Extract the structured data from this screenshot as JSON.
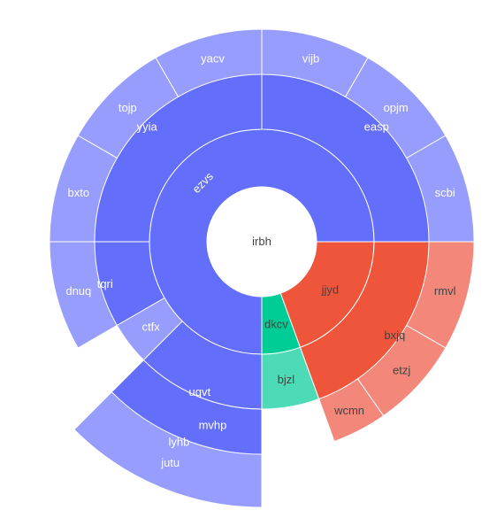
{
  "chart_data": {
    "type": "sunburst",
    "title": "",
    "center_label": "irbh",
    "rings": [
      {
        "level": 1,
        "segments": [
          {
            "label": "ezvs",
            "start_deg": 90,
            "end_deg": 360,
            "color": "#636efa",
            "text_color": "#ffffff",
            "rotated": true,
            "depth": 1
          },
          {
            "label": "jjyd",
            "start_deg": 0,
            "end_deg": 70,
            "color": "#ef553b",
            "text_color": "#444444",
            "depth": 1
          },
          {
            "label": "dkcv",
            "start_deg": 70,
            "end_deg": 90,
            "color": "#00cc96",
            "text_color": "#444444",
            "depth": 1
          }
        ]
      },
      {
        "level": 2,
        "segments": [
          {
            "label": "easp",
            "start_deg": 270,
            "end_deg": 360,
            "color": "#636efa",
            "text_color": "#ffffff",
            "depth": 2
          },
          {
            "label": "yyia",
            "start_deg": 180,
            "end_deg": 270,
            "color": "#636efa",
            "text_color": "#ffffff",
            "depth": 2
          },
          {
            "label": "tqri",
            "start_deg": 150,
            "end_deg": 180,
            "color": "#636efa",
            "text_color": "#ffffff",
            "depth": 2
          },
          {
            "label": "ctfx",
            "start_deg": 135,
            "end_deg": 150,
            "color": "#979dfc",
            "text_color": "#ffffff",
            "depth": 1
          },
          {
            "label": "uqvt",
            "start_deg": 90,
            "end_deg": 135,
            "color": "#636efa",
            "text_color": "#ffffff",
            "depth": 2
          },
          {
            "label": "bxjq",
            "start_deg": 0,
            "end_deg": 70,
            "color": "#ef553b",
            "text_color": "#444444",
            "depth": 2
          },
          {
            "label": "bjzl",
            "start_deg": 70,
            "end_deg": 90,
            "color": "#4cdbb6",
            "text_color": "#444444",
            "depth": 1
          }
        ]
      },
      {
        "level": 3,
        "segments": [
          {
            "label": "scbi",
            "start_deg": 330,
            "end_deg": 360,
            "color": "#979dfc",
            "text_color": "#ffffff",
            "depth": 1
          },
          {
            "label": "opjm",
            "start_deg": 300,
            "end_deg": 330,
            "color": "#979dfc",
            "text_color": "#ffffff",
            "depth": 1
          },
          {
            "label": "vijb",
            "start_deg": 270,
            "end_deg": 300,
            "color": "#979dfc",
            "text_color": "#ffffff",
            "depth": 1
          },
          {
            "label": "yacv",
            "start_deg": 240,
            "end_deg": 270,
            "color": "#979dfc",
            "text_color": "#ffffff",
            "depth": 1
          },
          {
            "label": "tojp",
            "start_deg": 210,
            "end_deg": 240,
            "color": "#979dfc",
            "text_color": "#ffffff",
            "depth": 1
          },
          {
            "label": "bxto",
            "start_deg": 180,
            "end_deg": 210,
            "color": "#979dfc",
            "text_color": "#ffffff",
            "depth": 1
          },
          {
            "label": "mvhp",
            "start_deg": 90,
            "end_deg": 120,
            "color": "#979dfc",
            "text_color": "#ffffff",
            "depth": 1
          },
          {
            "label": "dnuq",
            "start_deg": 150,
            "end_deg": 180,
            "color": "#979dfc",
            "text_color": "#ffffff",
            "depth": 1
          },
          {
            "label": "lyhb",
            "start_deg": 90,
            "end_deg": 135,
            "color": "#636efa",
            "text_color": "#ffffff",
            "depth": 2
          },
          {
            "label": "rmvl",
            "start_deg": 0,
            "end_deg": 30,
            "color": "#f3877a",
            "text_color": "#444444",
            "depth": 1
          },
          {
            "label": "etzj",
            "start_deg": 30,
            "end_deg": 55,
            "color": "#f3877a",
            "text_color": "#444444",
            "depth": 1
          },
          {
            "label": "wcmn",
            "start_deg": 55,
            "end_deg": 70,
            "color": "#f3877a",
            "text_color": "#444444",
            "depth": 1
          }
        ]
      },
      {
        "level": 4,
        "segments": [
          {
            "label": "jutu",
            "start_deg": 90,
            "end_deg": 135,
            "color": "#979dfc",
            "text_color": "#ffffff",
            "depth": 1
          }
        ]
      }
    ],
    "colors": {
      "blue": "#636efa",
      "blue_light": "#979dfc",
      "red": "#ef553b",
      "red_light": "#f3877a",
      "green": "#00cc96",
      "green_light": "#4cdbb6"
    }
  }
}
